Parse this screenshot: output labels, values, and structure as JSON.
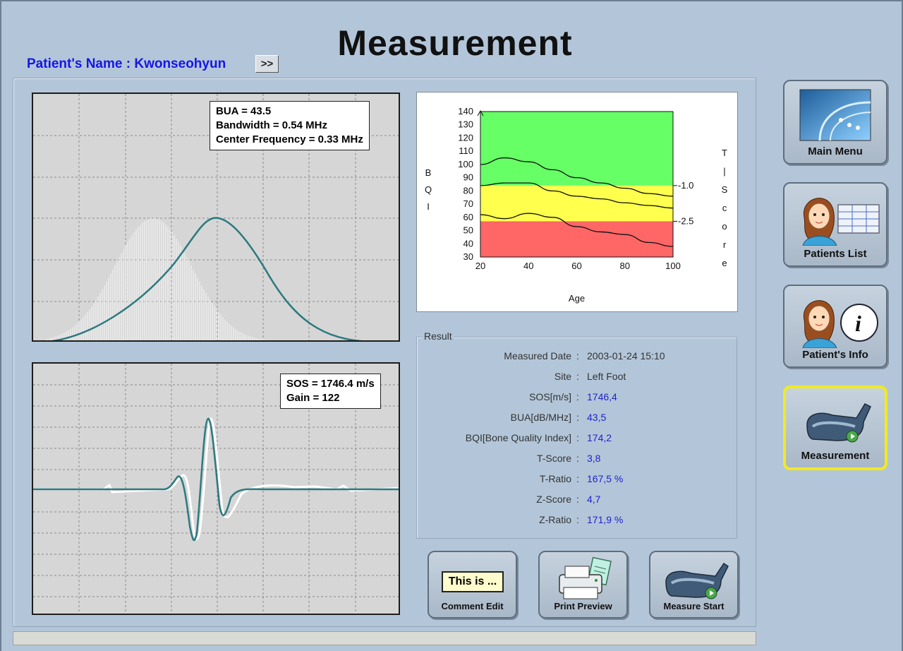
{
  "header": {
    "title": "Measurement",
    "patient_label": "Patient's Name : Kwonseohyun",
    "expand_label": ">>"
  },
  "bua_panel": {
    "lines": [
      "BUA = 43.5",
      "Bandwidth = 0.54 MHz",
      "Center Frequency = 0.33 MHz"
    ]
  },
  "sos_panel": {
    "lines": [
      "SOS = 1746.4 m/s",
      "Gain = 122"
    ]
  },
  "bqi_chart": {
    "y_axis_letters": [
      "B",
      "Q",
      "I"
    ],
    "right_axis_letters": [
      "T",
      "|",
      "S",
      "c",
      "o",
      "r",
      "e"
    ],
    "x_label": "Age",
    "colors": {
      "normal": "#66ff66",
      "osteopenia": "#ffff4d",
      "osteoporosis": "#ff6666"
    }
  },
  "chart_data": {
    "type": "line",
    "x": [
      20,
      30,
      40,
      50,
      60,
      70,
      80,
      90,
      100
    ],
    "xlim": [
      20,
      100
    ],
    "ylim": [
      30,
      140
    ],
    "xlabel": "Age",
    "ylabel": "BQI",
    "x_ticks": [
      20,
      40,
      60,
      80,
      100
    ],
    "y_ticks": [
      30,
      40,
      50,
      60,
      70,
      80,
      90,
      100,
      110,
      120,
      130,
      140
    ],
    "right_axis_ticks": [
      {
        "bqi": 84,
        "label": "-1.0"
      },
      {
        "bqi": 57,
        "label": "-2.5"
      }
    ],
    "bands": [
      {
        "from": 84,
        "to": 140,
        "color": "#66ff66"
      },
      {
        "from": 57,
        "to": 84,
        "color": "#ffff4d"
      },
      {
        "from": 30,
        "to": 57,
        "color": "#ff6666"
      }
    ],
    "series": [
      {
        "values": [
          100,
          105,
          102,
          96,
          90,
          86,
          82,
          78,
          76
        ]
      },
      {
        "values": [
          84,
          86,
          86,
          80,
          76,
          74,
          71,
          69,
          67
        ]
      },
      {
        "values": [
          62,
          59,
          63,
          60,
          53,
          49,
          47,
          41,
          38
        ]
      }
    ],
    "grid": false
  },
  "result": {
    "legend": "Result",
    "rows": [
      {
        "label": "Measured Date",
        "value": "2003-01-24 15:10",
        "color": "#333333"
      },
      {
        "label": "Site",
        "value": "Left Foot",
        "color": "#333333"
      },
      {
        "label": "SOS[m/s]",
        "value": "1746,4",
        "color": "#2222cc"
      },
      {
        "label": "BUA[dB/MHz]",
        "value": "43,5",
        "color": "#2222cc"
      },
      {
        "label": "BQI[Bone Quality Index]",
        "value": "174,2",
        "color": "#2222cc"
      },
      {
        "label": "T-Score",
        "value": "3,8",
        "color": "#2222cc"
      },
      {
        "label": "T-Ratio",
        "value": "167,5 %",
        "color": "#2222cc"
      },
      {
        "label": "Z-Score",
        "value": "4,7",
        "color": "#2222cc"
      },
      {
        "label": "Z-Ratio",
        "value": "171,9 %",
        "color": "#2222cc"
      }
    ],
    "colon": ":"
  },
  "bottom_buttons": {
    "comment_preview": "This is ...",
    "comment_label": "Comment Edit",
    "print_label": "Print Preview",
    "measure_label": "Measure Start"
  },
  "side_nav": {
    "main_menu": "Main Menu",
    "patients_list": "Patients List",
    "patient_info": "Patient's Info",
    "measurement": "Measurement",
    "active": "Measurement"
  }
}
